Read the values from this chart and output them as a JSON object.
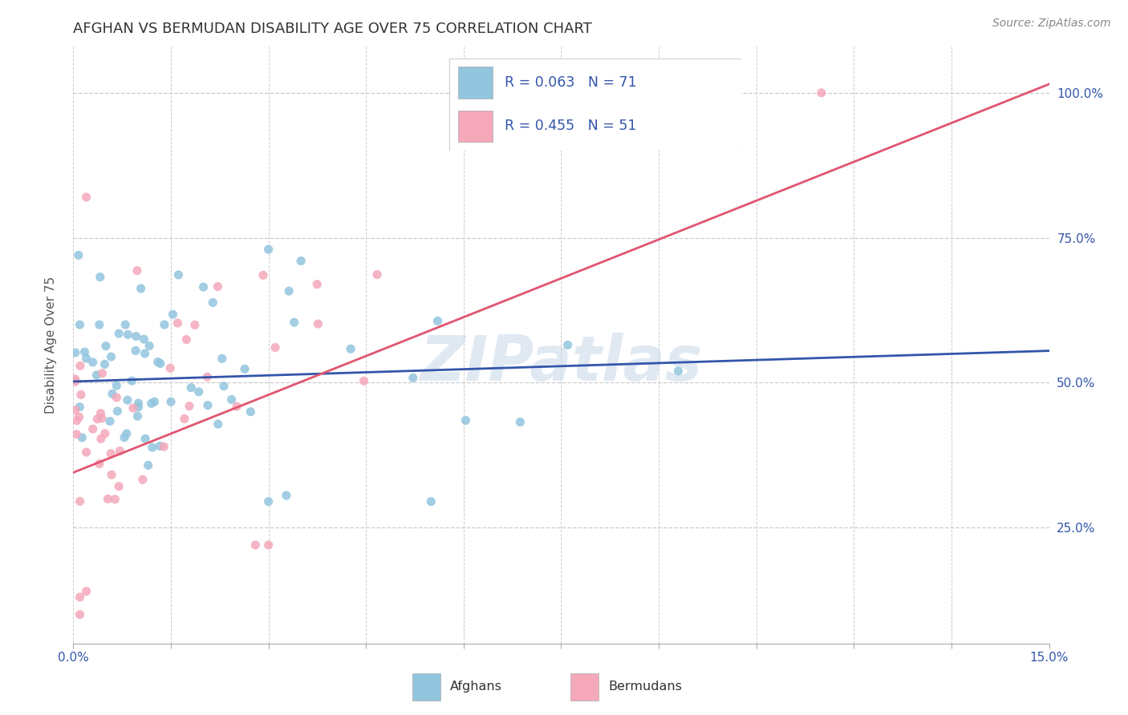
{
  "title": "AFGHAN VS BERMUDAN DISABILITY AGE OVER 75 CORRELATION CHART",
  "source": "Source: ZipAtlas.com",
  "ylabel": "Disability Age Over 75",
  "legend_line1": "R = 0.063   N = 71",
  "legend_line2": "R = 0.455   N = 51",
  "bottom_label1": "Afghans",
  "bottom_label2": "Bermudans",
  "afghan_color": "#92C5DE",
  "bermudan_color": "#F4A8BA",
  "afghan_line_color": "#3355AA",
  "bermudan_line_color": "#E05570",
  "legend_text_color": "#3355AA",
  "right_tick_color": "#3355AA",
  "watermark": "ZIPatlas",
  "xlim": [
    0.0,
    0.15
  ],
  "ylim": [
    0.05,
    1.08
  ],
  "x_only_labels": [
    "0.0%",
    "15.0%"
  ],
  "y_ticks": [
    0.25,
    0.5,
    0.75,
    1.0
  ],
  "y_tick_labels": [
    "25.0%",
    "50.0%",
    "75.0%",
    "100.0%"
  ],
  "afghan_trend_x": [
    0.0,
    0.15
  ],
  "afghan_trend_y": [
    0.502,
    0.555
  ],
  "bermudan_trend_x": [
    0.0,
    0.15
  ],
  "bermudan_trend_y": [
    0.345,
    1.015
  ],
  "background_color": "#ffffff",
  "grid_color": "#cccccc",
  "title_fontsize": 13,
  "ylabel_fontsize": 11,
  "tick_fontsize": 11,
  "legend_fontsize": 13,
  "source_fontsize": 10
}
